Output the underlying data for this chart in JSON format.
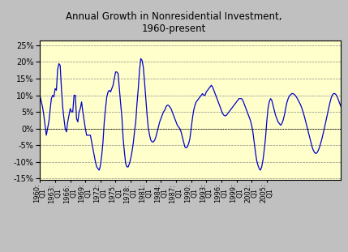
{
  "title": "Annual Growth in Nonresidential Investment,\n1960-present",
  "ylim": [
    -0.155,
    0.265
  ],
  "yticks": [
    -0.15,
    -0.1,
    -0.05,
    0.0,
    0.05,
    0.1,
    0.15,
    0.2,
    0.25
  ],
  "line_color": "#0000cc",
  "bg_color": "#ffffcc",
  "outer_bg": "#c0c0c0",
  "title_fontsize": 8.5,
  "x_tick_labels": [
    "1960:\nQ1",
    "1963:\nQ1",
    "1966:\nQ1",
    "1969:\nQ1",
    "1972:\nQ1",
    "1975:\nQ1",
    "1978:\nQ1",
    "1981:\nQ1",
    "1984:\nQ1",
    "1987:\nQ1",
    "1990:\nQ1",
    "1993:\nQ1",
    "1996:\nQ1",
    "1999:\nQ1",
    "2002:\nQ1",
    "2005:\nQ1"
  ],
  "values": [
    0.098,
    0.082,
    0.065,
    0.04,
    0.01,
    -0.02,
    0.0,
    0.02,
    0.055,
    0.09,
    0.1,
    0.095,
    0.12,
    0.115,
    0.178,
    0.195,
    0.19,
    0.12,
    0.065,
    0.03,
    0.0,
    -0.01,
    0.02,
    0.04,
    0.06,
    0.05,
    0.05,
    0.1,
    0.1,
    0.03,
    0.02,
    0.05,
    0.06,
    0.08,
    0.05,
    0.025,
    0.0,
    -0.02,
    -0.02,
    -0.02,
    -0.02,
    -0.04,
    -0.06,
    -0.08,
    -0.1,
    -0.115,
    -0.12,
    -0.125,
    -0.11,
    -0.08,
    -0.04,
    0.02,
    0.06,
    0.095,
    0.11,
    0.115,
    0.11,
    0.12,
    0.13,
    0.15,
    0.17,
    0.17,
    0.165,
    0.12,
    0.075,
    0.035,
    -0.03,
    -0.07,
    -0.105,
    -0.115,
    -0.115,
    -0.105,
    -0.09,
    -0.07,
    -0.045,
    -0.01,
    0.02,
    0.075,
    0.12,
    0.175,
    0.21,
    0.205,
    0.185,
    0.14,
    0.09,
    0.04,
    0.0,
    -0.02,
    -0.035,
    -0.04,
    -0.04,
    -0.035,
    -0.025,
    -0.01,
    0.005,
    0.02,
    0.03,
    0.04,
    0.05,
    0.055,
    0.065,
    0.07,
    0.07,
    0.065,
    0.06,
    0.05,
    0.04,
    0.03,
    0.02,
    0.01,
    0.005,
    0.0,
    -0.01,
    -0.025,
    -0.04,
    -0.055,
    -0.058,
    -0.055,
    -0.045,
    -0.03,
    0.0,
    0.03,
    0.055,
    0.07,
    0.08,
    0.085,
    0.09,
    0.095,
    0.1,
    0.105,
    0.1,
    0.1,
    0.11,
    0.115,
    0.12,
    0.125,
    0.13,
    0.125,
    0.115,
    0.105,
    0.095,
    0.085,
    0.075,
    0.065,
    0.055,
    0.045,
    0.04,
    0.038,
    0.04,
    0.045,
    0.05,
    0.055,
    0.06,
    0.065,
    0.07,
    0.075,
    0.08,
    0.085,
    0.09,
    0.09,
    0.09,
    0.085,
    0.075,
    0.065,
    0.055,
    0.045,
    0.035,
    0.025,
    0.01,
    -0.01,
    -0.04,
    -0.07,
    -0.095,
    -0.11,
    -0.12,
    -0.125,
    -0.115,
    -0.095,
    -0.065,
    -0.03,
    0.02,
    0.06,
    0.08,
    0.09,
    0.085,
    0.07,
    0.055,
    0.04,
    0.03,
    0.02,
    0.015,
    0.01,
    0.015,
    0.025,
    0.04,
    0.06,
    0.078,
    0.09,
    0.098,
    0.102,
    0.105,
    0.105,
    0.102,
    0.098,
    0.092,
    0.085,
    0.078,
    0.07,
    0.06,
    0.048,
    0.035,
    0.02,
    0.005,
    -0.01,
    -0.025,
    -0.04,
    -0.055,
    -0.065,
    -0.072,
    -0.075,
    -0.072,
    -0.065,
    -0.055,
    -0.042,
    -0.028,
    -0.012,
    0.005,
    0.022,
    0.04,
    0.058,
    0.075,
    0.09,
    0.1,
    0.105,
    0.105,
    0.102,
    0.095,
    0.085,
    0.075,
    0.065
  ]
}
